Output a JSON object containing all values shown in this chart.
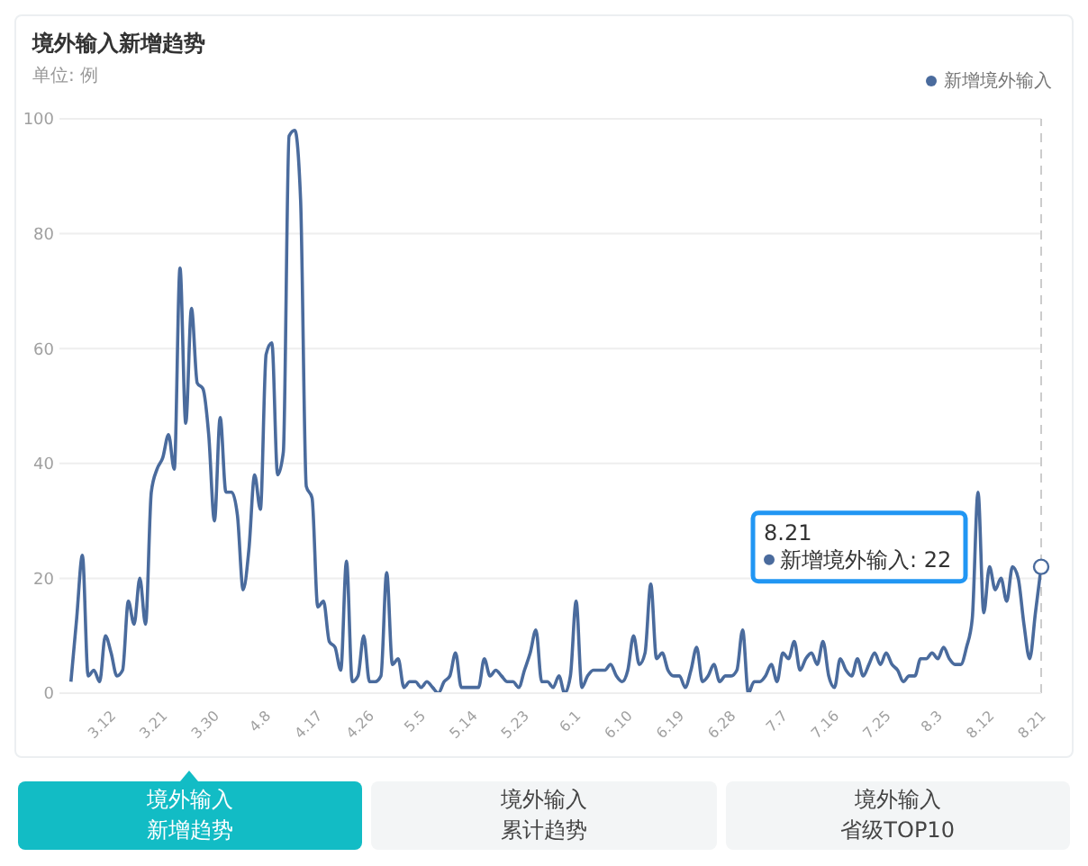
{
  "chart_data": {
    "type": "line",
    "title": "境外输入新增趋势",
    "subtitle": "单位: 例",
    "x": [
      "--03-05",
      "--03-06",
      "--03-07",
      "--03-08",
      "--03-09",
      "--03-10",
      "--03-11",
      "--03-12",
      "--03-13",
      "--03-14",
      "--03-15",
      "--03-16",
      "--03-17",
      "--03-18",
      "--03-19",
      "--03-20",
      "--03-21",
      "--03-22",
      "--03-23",
      "--03-24",
      "--03-25",
      "--03-26",
      "--03-27",
      "--03-28",
      "--03-29",
      "--03-30",
      "--03-31",
      "--04-01",
      "--04-02",
      "--04-03",
      "--04-04",
      "--04-05",
      "--04-06",
      "--04-07",
      "--04-08",
      "--04-09",
      "--04-10",
      "--04-11",
      "--04-12",
      "--04-13",
      "--04-14",
      "--04-15",
      "--04-16",
      "--04-17",
      "--04-18",
      "--04-19",
      "--04-20",
      "--04-21",
      "--04-22",
      "--04-23",
      "--04-24",
      "--04-25",
      "--04-26",
      "--04-27",
      "--04-28",
      "--04-29",
      "--04-30",
      "--05-01",
      "--05-02",
      "--05-03",
      "--05-04",
      "--05-05",
      "--05-06",
      "--05-07",
      "--05-08",
      "--05-09",
      "--05-10",
      "--05-11",
      "--05-12",
      "--05-13",
      "--05-14",
      "--05-15",
      "--05-16",
      "--05-17",
      "--05-18",
      "--05-19",
      "--05-20",
      "--05-21",
      "--05-22",
      "--05-23",
      "--05-24",
      "--05-25",
      "--05-26",
      "--05-27",
      "--05-28",
      "--05-29",
      "--05-30",
      "--05-31",
      "--06-01",
      "--06-02",
      "--06-03",
      "--06-04",
      "--06-05",
      "--06-06",
      "--06-07",
      "--06-08",
      "--06-09",
      "--06-10",
      "--06-11",
      "--06-12",
      "--06-13",
      "--06-14",
      "--06-15",
      "--06-16",
      "--06-17",
      "--06-18",
      "--06-19",
      "--06-20",
      "--06-21",
      "--06-22",
      "--06-23",
      "--06-24",
      "--06-25",
      "--06-26",
      "--06-27",
      "--06-28",
      "--06-29",
      "--06-30",
      "--07-01",
      "--07-02",
      "--07-03",
      "--07-04",
      "--07-05",
      "--07-06",
      "--07-07",
      "--07-08",
      "--07-09",
      "--07-10",
      "--07-11",
      "--07-12",
      "--07-13",
      "--07-14",
      "--07-15",
      "--07-16",
      "--07-17",
      "--07-18",
      "--07-19",
      "--07-20",
      "--07-21",
      "--07-22",
      "--07-23",
      "--07-24",
      "--07-25",
      "--07-26",
      "--07-27",
      "--07-28",
      "--07-29",
      "--07-30",
      "--07-31",
      "--08-01",
      "--08-02",
      "--08-03",
      "--08-04",
      "--08-05",
      "--08-06",
      "--08-07",
      "--08-08",
      "--08-09",
      "--08-10",
      "--08-11",
      "--08-12",
      "--08-13",
      "--08-14",
      "--08-15",
      "--08-16",
      "--08-17",
      "--08-18",
      "--08-19",
      "--08-20",
      "--08-21"
    ],
    "series": [
      {
        "name": "新增境外输入",
        "color": "#4a6b9d",
        "values": [
          2,
          13,
          24,
          3,
          4,
          2,
          10,
          7,
          3,
          4,
          16,
          12,
          20,
          12,
          35,
          39,
          41,
          45,
          39,
          74,
          47,
          67,
          54,
          53,
          45,
          30,
          48,
          35,
          35,
          31,
          18,
          25,
          38,
          32,
          59,
          61,
          38,
          42,
          97,
          98,
          86,
          36,
          34,
          15,
          16,
          9,
          8,
          4,
          23,
          2,
          3,
          10,
          2,
          2,
          3,
          21,
          5,
          6,
          1,
          2,
          2,
          1,
          2,
          1,
          0,
          2,
          3,
          7,
          1,
          1,
          1,
          1,
          6,
          3,
          4,
          3,
          2,
          2,
          1,
          4,
          7,
          11,
          2,
          2,
          1,
          3,
          0,
          3,
          16,
          1,
          3,
          4,
          4,
          4,
          5,
          3,
          2,
          4,
          10,
          5,
          7,
          19,
          6,
          7,
          4,
          3,
          3,
          1,
          4,
          8,
          2,
          3,
          5,
          2,
          3,
          3,
          4,
          11,
          0,
          2,
          2,
          3,
          5,
          2,
          7,
          6,
          9,
          4,
          6,
          7,
          5,
          9,
          3,
          1,
          6,
          4,
          3,
          6,
          3,
          5,
          7,
          5,
          7,
          5,
          4,
          2,
          3,
          3,
          6,
          6,
          7,
          6,
          8,
          6,
          5,
          5,
          8,
          13,
          35,
          14,
          22,
          18,
          20,
          16,
          22,
          20,
          12,
          6,
          14,
          22
        ]
      }
    ],
    "xlim": [
      "--03-03",
      "--08-21"
    ],
    "xticks": [
      {
        "value": "--03-12",
        "label": "3.12"
      },
      {
        "value": "--03-21",
        "label": "3.21"
      },
      {
        "value": "--03-30",
        "label": "3.30"
      },
      {
        "value": "--04-08",
        "label": "4.8"
      },
      {
        "value": "--04-17",
        "label": "4.17"
      },
      {
        "value": "--04-26",
        "label": "4.26"
      },
      {
        "value": "--05-05",
        "label": "5.5"
      },
      {
        "value": "--05-14",
        "label": "5.14"
      },
      {
        "value": "--05-23",
        "label": "5.23"
      },
      {
        "value": "--06-01",
        "label": "6.1"
      },
      {
        "value": "--06-10",
        "label": "6.10"
      },
      {
        "value": "--06-19",
        "label": "6.19"
      },
      {
        "value": "--06-28",
        "label": "6.28"
      },
      {
        "value": "--07-07",
        "label": "7.7"
      },
      {
        "value": "--07-16",
        "label": "7.16"
      },
      {
        "value": "--07-25",
        "label": "7.25"
      },
      {
        "value": "--08-03",
        "label": "8.3"
      },
      {
        "value": "--08-12",
        "label": "8.12"
      },
      {
        "value": "--08-21",
        "label": "8.21"
      }
    ],
    "ylim": [
      0,
      100
    ],
    "yticks": [
      0,
      20,
      40,
      60,
      80,
      100
    ],
    "grid": "y",
    "legend": "top right",
    "ref_lines": [
      {
        "axis": "x",
        "value": "--08-21",
        "color": "#cccccc",
        "line_style": "dashed"
      }
    ],
    "annotations": [
      "8.21",
      "新增境外输入: 22",
      "境外输入",
      "新增趋势",
      "境外输入",
      "累计趋势",
      "境外输入",
      "省级TOP10"
    ]
  }
}
